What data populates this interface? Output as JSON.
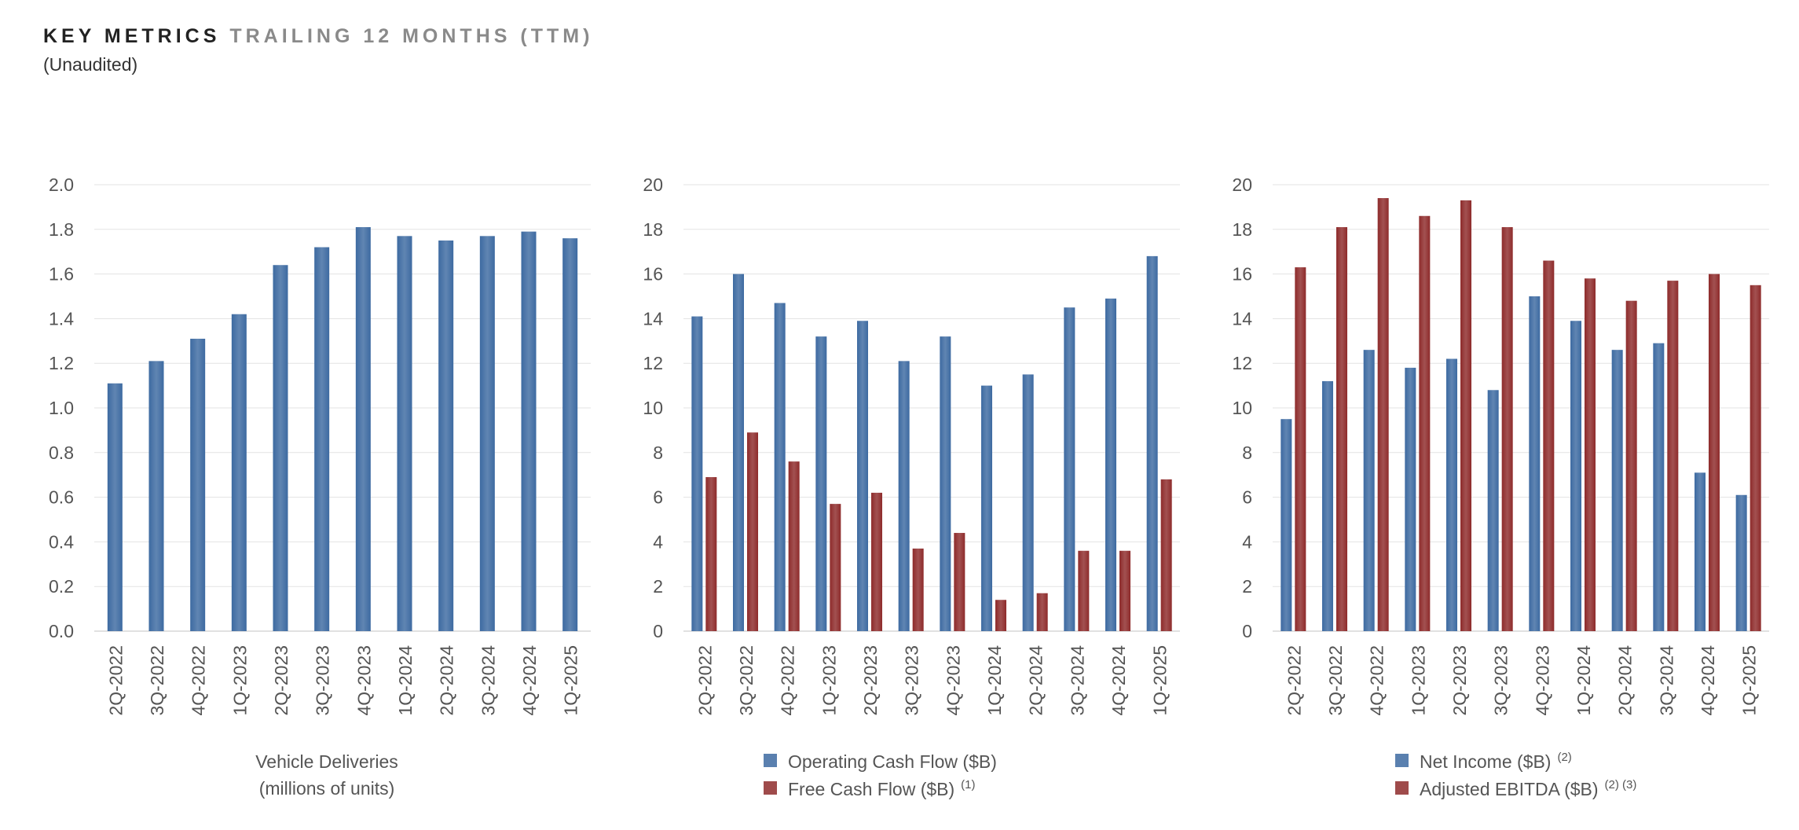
{
  "header": {
    "title_main": "KEY METRICS",
    "title_sub": "TRAILING 12 MONTHS (TTM)",
    "subtitle": "(Unaudited)"
  },
  "colors": {
    "blue": "#3d6aa1",
    "blue_light": "#4a7cb8",
    "red": "#8e2b2b",
    "red_light": "#b54444",
    "grid": "#e3e3e3",
    "text": "#555555"
  },
  "chart_data": [
    {
      "type": "bar",
      "categories": [
        "2Q-2022",
        "3Q-2022",
        "4Q-2022",
        "1Q-2023",
        "2Q-2023",
        "3Q-2023",
        "4Q-2023",
        "1Q-2024",
        "2Q-2024",
        "3Q-2024",
        "4Q-2024",
        "1Q-2025"
      ],
      "series": [
        {
          "name": "Vehicle Deliveries",
          "color": "#3d6aa1",
          "values": [
            1.11,
            1.21,
            1.31,
            1.42,
            1.64,
            1.72,
            1.81,
            1.77,
            1.75,
            1.77,
            1.79,
            1.76
          ]
        }
      ],
      "ylim": [
        0,
        2.0
      ],
      "yticks": [
        0,
        0.2,
        0.4,
        0.6,
        0.8,
        1.0,
        1.2,
        1.4,
        1.6,
        1.8,
        2.0
      ],
      "ytick_decimals": 1,
      "legend_style": "caption",
      "caption": [
        "Vehicle Deliveries",
        "(millions of units)"
      ]
    },
    {
      "type": "bar",
      "categories": [
        "2Q-2022",
        "3Q-2022",
        "4Q-2022",
        "1Q-2023",
        "2Q-2023",
        "3Q-2023",
        "4Q-2023",
        "1Q-2024",
        "2Q-2024",
        "3Q-2024",
        "4Q-2024",
        "1Q-2025"
      ],
      "series": [
        {
          "name": "Operating Cash Flow ($B)",
          "footnote": "",
          "color": "#3d6aa1",
          "values": [
            14.1,
            16.0,
            14.7,
            13.2,
            13.9,
            12.1,
            13.2,
            11.0,
            11.5,
            14.5,
            14.9,
            16.8
          ]
        },
        {
          "name": "Free Cash Flow ($B)",
          "footnote": "(1)",
          "color": "#8e2b2b",
          "values": [
            6.9,
            8.9,
            7.6,
            5.7,
            6.2,
            3.7,
            4.4,
            1.4,
            1.7,
            3.6,
            3.6,
            6.8
          ]
        }
      ],
      "ylim": [
        0,
        20
      ],
      "yticks": [
        0,
        2,
        4,
        6,
        8,
        10,
        12,
        14,
        16,
        18,
        20
      ],
      "ytick_decimals": 0,
      "legend_style": "legend"
    },
    {
      "type": "bar",
      "categories": [
        "2Q-2022",
        "3Q-2022",
        "4Q-2022",
        "1Q-2023",
        "2Q-2023",
        "3Q-2023",
        "4Q-2023",
        "1Q-2024",
        "2Q-2024",
        "3Q-2024",
        "4Q-2024",
        "1Q-2025"
      ],
      "series": [
        {
          "name": "Net Income ($B)",
          "footnote": "(2)",
          "color": "#3d6aa1",
          "values": [
            9.5,
            11.2,
            12.6,
            11.8,
            12.2,
            10.8,
            15.0,
            13.9,
            12.6,
            12.9,
            7.1,
            6.1
          ]
        },
        {
          "name": "Adjusted EBITDA ($B)",
          "footnote": "(2) (3)",
          "color": "#8e2b2b",
          "values": [
            16.3,
            18.1,
            19.4,
            18.6,
            19.3,
            18.1,
            16.6,
            15.8,
            14.8,
            15.7,
            16.0,
            15.5
          ]
        }
      ],
      "ylim": [
        0,
        20
      ],
      "yticks": [
        0,
        2,
        4,
        6,
        8,
        10,
        12,
        14,
        16,
        18,
        20
      ],
      "ytick_decimals": 0,
      "legend_style": "legend"
    }
  ]
}
